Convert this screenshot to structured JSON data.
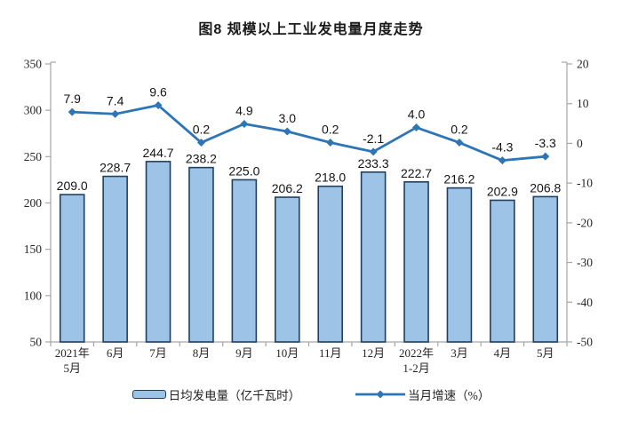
{
  "title": "图8 规模以上工业发电量月度走势",
  "chart_data": {
    "type": "combo-bar-line",
    "categories": [
      "2021年\n5月",
      "6月",
      "7月",
      "8月",
      "9月",
      "10月",
      "11月",
      "12月",
      "2022年\n1-2月",
      "3月",
      "4月",
      "5月"
    ],
    "series": [
      {
        "name": "日均发电量（亿千瓦时）",
        "type": "bar",
        "axis": "left",
        "values": [
          209.0,
          228.7,
          244.7,
          238.2,
          225.0,
          206.2,
          218.0,
          233.3,
          222.7,
          216.2,
          202.9,
          206.8
        ],
        "labels": [
          "209.0",
          "228.7",
          "244.7",
          "238.2",
          "225.0",
          "206.2",
          "218.0",
          "233.3",
          "222.7",
          "216.2",
          "202.9",
          "206.8"
        ]
      },
      {
        "name": "当月增速（%）",
        "type": "line",
        "axis": "right",
        "values": [
          7.9,
          7.4,
          9.6,
          0.2,
          4.9,
          3.0,
          0.2,
          -2.1,
          4.0,
          0.2,
          -4.3,
          -3.3
        ],
        "labels": [
          "7.9",
          "7.4",
          "9.6",
          "0.2",
          "4.9",
          "3.0",
          "0.2",
          "-2.1",
          "4.0",
          "0.2",
          "-4.3",
          "-3.3"
        ]
      }
    ],
    "left_axis": {
      "min": 50,
      "max": 350,
      "step": 50,
      "ticks": [
        "50",
        "100",
        "150",
        "200",
        "250",
        "300",
        "350"
      ]
    },
    "right_axis": {
      "min": -50,
      "max": 20,
      "step": 10,
      "ticks": [
        "-50",
        "-40",
        "-30",
        "-20",
        "-10",
        "0",
        "10",
        "20"
      ]
    },
    "legend": [
      {
        "label": "日均发电量（亿千瓦时）",
        "swatch": "bar"
      },
      {
        "label": "当月增速（%）",
        "swatch": "line"
      }
    ],
    "grid": false,
    "legend_position": "bottom",
    "colors": {
      "bar_fill": "#9DC3E6",
      "bar_border": "#1F4060",
      "line": "#2E75B6",
      "axis": "#A6A6A6",
      "text": "#262626"
    }
  }
}
